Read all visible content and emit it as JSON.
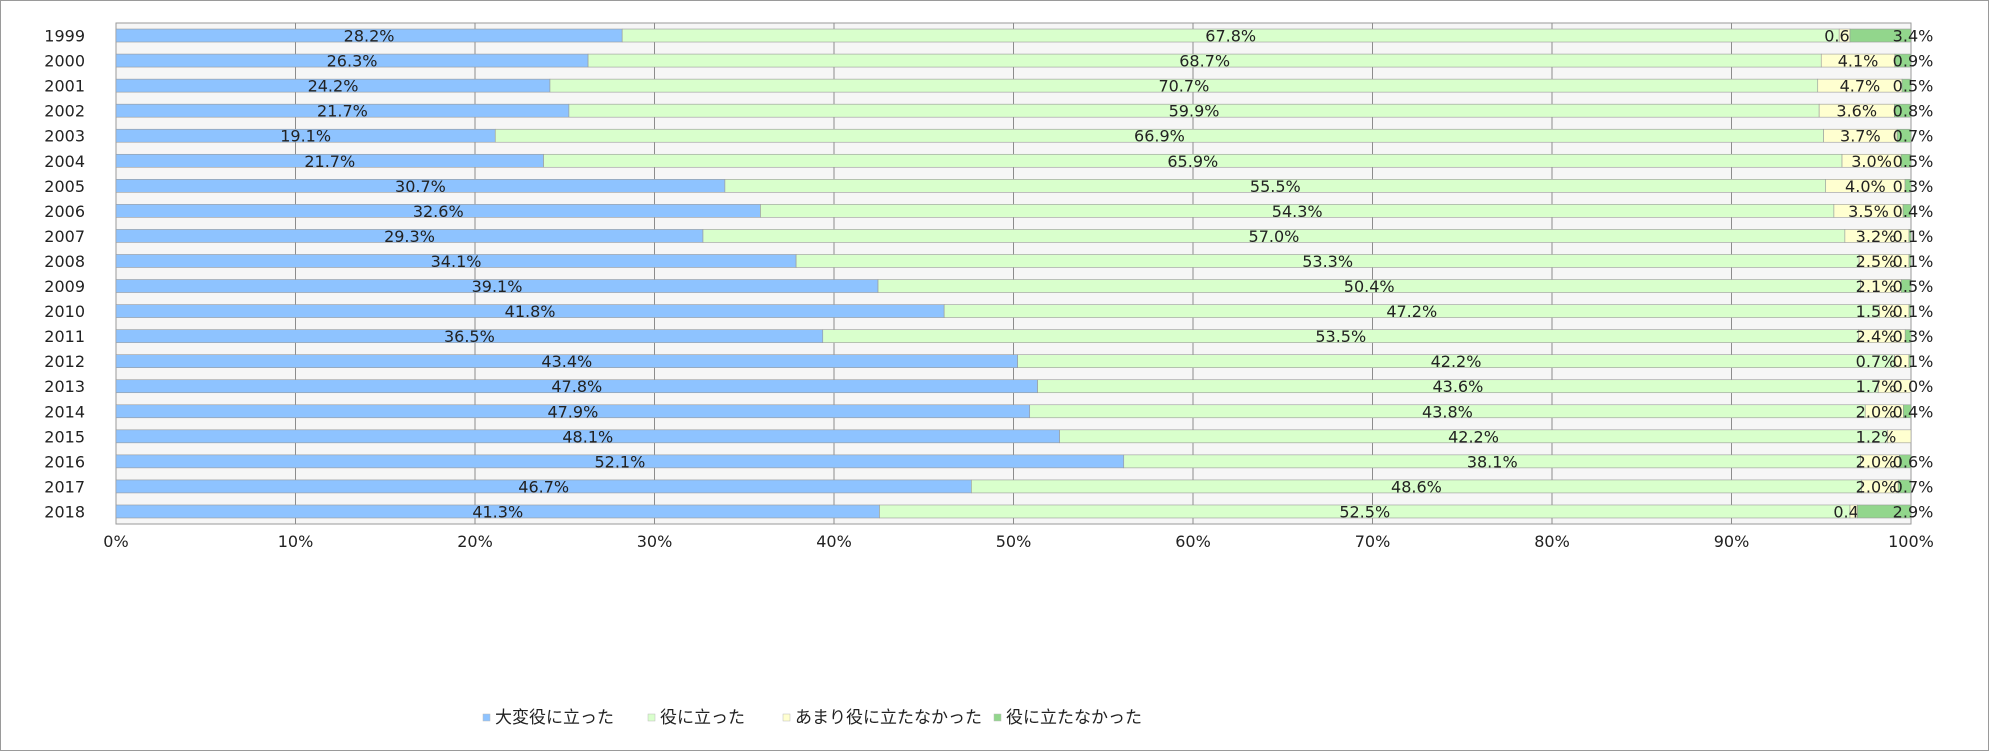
{
  "chart_data": {
    "type": "bar",
    "orientation": "horizontal",
    "stacked": true,
    "percent": true,
    "title": "",
    "xlabel": "",
    "ylabel": "",
    "xlim": [
      0,
      100
    ],
    "grid": true,
    "legend_position": "bottom",
    "x_ticks": [
      "0%",
      "10%",
      "20%",
      "30%",
      "40%",
      "50%",
      "60%",
      "70%",
      "80%",
      "90%",
      "100%"
    ],
    "categories": [
      "1999",
      "2000",
      "2001",
      "2002",
      "2003",
      "2004",
      "2005",
      "2006",
      "2007",
      "2008",
      "2009",
      "2010",
      "2011",
      "2012",
      "2013",
      "2014",
      "2015",
      "2016",
      "2017",
      "2018"
    ],
    "series": [
      {
        "name": "大変役に立った",
        "color": "#8ec3ff",
        "values": [
          28.2,
          26.3,
          24.2,
          21.7,
          19.1,
          21.7,
          30.7,
          32.6,
          29.3,
          34.1,
          39.1,
          41.8,
          36.5,
          43.4,
          47.8,
          47.9,
          48.1,
          52.1,
          46.7,
          41.3
        ]
      },
      {
        "name": "役に立った",
        "color": "#d9ffcc",
        "values": [
          67.8,
          68.7,
          70.7,
          59.9,
          66.9,
          65.9,
          55.5,
          54.3,
          57.0,
          53.3,
          50.4,
          47.2,
          53.5,
          42.2,
          43.6,
          43.8,
          42.2,
          38.1,
          48.6,
          52.5
        ]
      },
      {
        "name": "あまり役に立たなかった",
        "color": "#ffffd0",
        "values": [
          0.6,
          4.1,
          4.7,
          3.6,
          3.7,
          3.0,
          4.0,
          3.5,
          3.2,
          2.5,
          2.1,
          1.5,
          2.4,
          0.7,
          1.7,
          2.0,
          1.2,
          2.0,
          2.0,
          0.4
        ]
      },
      {
        "name": "役に立たなかった",
        "color": "#92d68c",
        "values": [
          3.4,
          0.9,
          0.5,
          0.8,
          0.7,
          0.5,
          0.3,
          0.4,
          0.1,
          0.1,
          0.5,
          0.1,
          0.3,
          0.1,
          0.0,
          0.4,
          null,
          0.6,
          0.7,
          2.9
        ]
      }
    ]
  }
}
